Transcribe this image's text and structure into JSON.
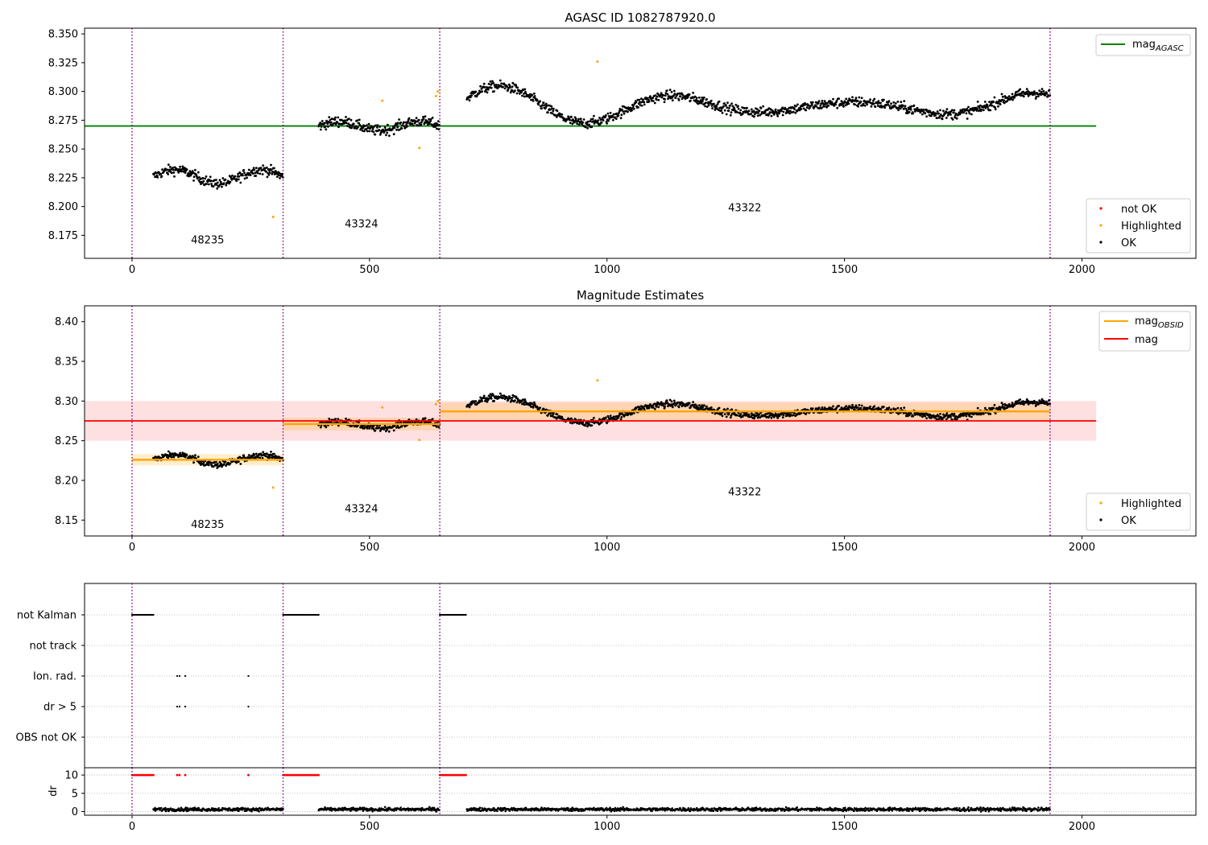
{
  "chart_data": [
    {
      "type": "scatter",
      "title": "AGASC ID 1082787920.0",
      "xlim": [
        -100,
        2240
      ],
      "ylim": [
        8.155,
        8.355
      ],
      "xticks": [
        0,
        500,
        1000,
        1500,
        2000
      ],
      "xtick_labels": [
        "0",
        "500",
        "1000",
        "1500",
        "2000"
      ],
      "yticks": [
        8.175,
        8.2,
        8.225,
        8.25,
        8.275,
        8.3,
        8.325,
        8.35
      ],
      "ytick_labels": [
        "8.175",
        "8.200",
        "8.225",
        "8.250",
        "8.275",
        "8.300",
        "8.325",
        "8.350"
      ],
      "obsid_boundaries": [
        0,
        318,
        648,
        1933
      ],
      "obsid_labels": [
        {
          "text": "48235",
          "x": 159,
          "y": 8.168
        },
        {
          "text": "43324",
          "x": 483,
          "y": 8.182
        },
        {
          "text": "43322",
          "x": 1290,
          "y": 8.196
        }
      ],
      "mag_agasc": {
        "value": 8.27,
        "x_range": [
          -100,
          2030
        ],
        "color": "#008000"
      },
      "segments": [
        {
          "x_range": [
            45,
            318
          ],
          "baseline": 8.226,
          "amp": 0.006,
          "noise": 0.008
        },
        {
          "x_range": [
            393,
            648
          ],
          "baseline": 8.27,
          "amp": 0.004,
          "noise": 0.008
        },
        {
          "x_range": [
            705,
            1933
          ],
          "baseline": 8.287,
          "amp": 0.018,
          "noise": 0.008
        }
      ],
      "highlighted": [
        {
          "x": 297,
          "y": 8.191
        },
        {
          "x": 527,
          "y": 8.292
        },
        {
          "x": 605,
          "y": 8.251
        },
        {
          "x": 640,
          "y": 8.296
        },
        {
          "x": 644,
          "y": 8.3
        },
        {
          "x": 980,
          "y": 8.326
        }
      ],
      "legend_upper": [
        {
          "label": "mag",
          "subscript": "AGASC",
          "color": "#008000",
          "kind": "line"
        }
      ],
      "legend_lower": [
        {
          "label": "not OK",
          "color": "#ff0000",
          "kind": "point"
        },
        {
          "label": "Highlighted",
          "color": "#ffa500",
          "kind": "point"
        },
        {
          "label": "OK",
          "color": "#000000",
          "kind": "point"
        }
      ]
    },
    {
      "type": "scatter",
      "title": "Magnitude Estimates",
      "xlim": [
        -100,
        2240
      ],
      "ylim": [
        8.13,
        8.42
      ],
      "xticks": [
        0,
        500,
        1000,
        1500,
        2000
      ],
      "xtick_labels": [
        "0",
        "500",
        "1000",
        "1500",
        "2000"
      ],
      "yticks": [
        8.15,
        8.2,
        8.25,
        8.3,
        8.35,
        8.4
      ],
      "ytick_labels": [
        "8.15",
        "8.20",
        "8.25",
        "8.30",
        "8.35",
        "8.40"
      ],
      "obsid_boundaries": [
        0,
        318,
        648,
        1933
      ],
      "obsid_labels": [
        {
          "text": "48235",
          "x": 159,
          "y": 8.14
        },
        {
          "text": "43324",
          "x": 483,
          "y": 8.16
        },
        {
          "text": "43322",
          "x": 1290,
          "y": 8.181
        }
      ],
      "mag": {
        "value": 8.275,
        "band": [
          8.25,
          8.3
        ],
        "x_range": [
          -100,
          2030
        ],
        "color": "#ff0000"
      },
      "mag_obsid": [
        {
          "x_range": [
            0,
            318
          ],
          "value": 8.226,
          "band": [
            8.219,
            8.233
          ]
        },
        {
          "x_range": [
            318,
            648
          ],
          "value": 8.271,
          "band": [
            8.263,
            8.279
          ]
        },
        {
          "x_range": [
            648,
            1933
          ],
          "value": 8.287,
          "band": [
            8.276,
            8.298
          ]
        }
      ],
      "legend_upper": [
        {
          "label": "mag",
          "subscript": "OBSID",
          "color": "#ffa500",
          "kind": "line"
        },
        {
          "label": "mag",
          "subscript": "",
          "color": "#ff0000",
          "kind": "line"
        }
      ],
      "legend_lower": [
        {
          "label": "Highlighted",
          "color": "#ffa500",
          "kind": "point"
        },
        {
          "label": "OK",
          "color": "#000000",
          "kind": "point"
        }
      ]
    },
    {
      "type": "scatter",
      "title": "",
      "xlim": [
        -100,
        2240
      ],
      "categories": [
        "not Kalman",
        "not track",
        "Ion. rad.",
        "dr > 5",
        "OBS not OK"
      ],
      "obsid_boundaries": [
        0,
        318,
        648,
        1933
      ],
      "flags": {
        "not Kalman": [
          [
            0,
            45
          ],
          [
            318,
            393
          ],
          [
            648,
            705
          ]
        ],
        "not track": [],
        "Ion. rad.": [
          [
            95,
            100,
            112,
            245
          ]
        ],
        "dr > 5": [
          [
            95,
            100,
            112,
            245
          ]
        ],
        "OBS not OK": []
      }
    },
    {
      "type": "scatter",
      "title": "",
      "ylabel": "dr",
      "xlim": [
        -100,
        2240
      ],
      "ylim": [
        -1,
        12
      ],
      "yticks": [
        0,
        5,
        10
      ],
      "ytick_labels": [
        "0",
        "5",
        "10"
      ],
      "xticks": [
        0,
        500,
        1000,
        1500,
        2000
      ],
      "xtick_labels": [
        "0",
        "500",
        "1000",
        "1500",
        "2000"
      ],
      "obsid_boundaries": [
        0,
        318,
        648,
        1933
      ],
      "dr_typical": 0.6
    }
  ]
}
